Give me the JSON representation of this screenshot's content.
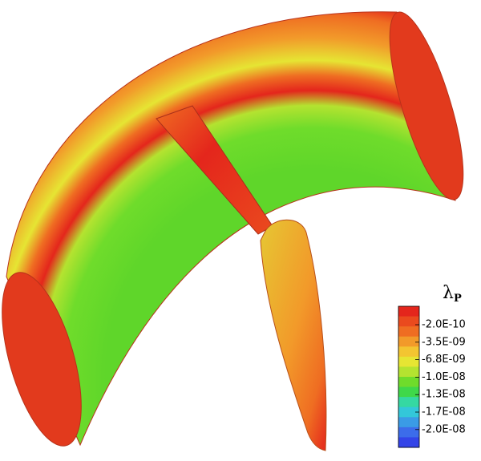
{
  "legend": {
    "title": "λ",
    "subscript": "P",
    "labels": [
      "-2.0E-10",
      "-3.5E-09",
      "-6.8E-09",
      "-1.0E-08",
      "-1.3E-08",
      "-1.7E-08",
      "-2.0E-08"
    ],
    "colors": [
      "#e4261c",
      "#ea4a1e",
      "#ef6d22",
      "#f29a2a",
      "#f3c531",
      "#e6e533",
      "#b4e330",
      "#6fdc2b",
      "#3fd84a",
      "#35d8a2",
      "#33c7d9",
      "#3a9be6",
      "#3c6cea",
      "#3344e8"
    ]
  }
}
